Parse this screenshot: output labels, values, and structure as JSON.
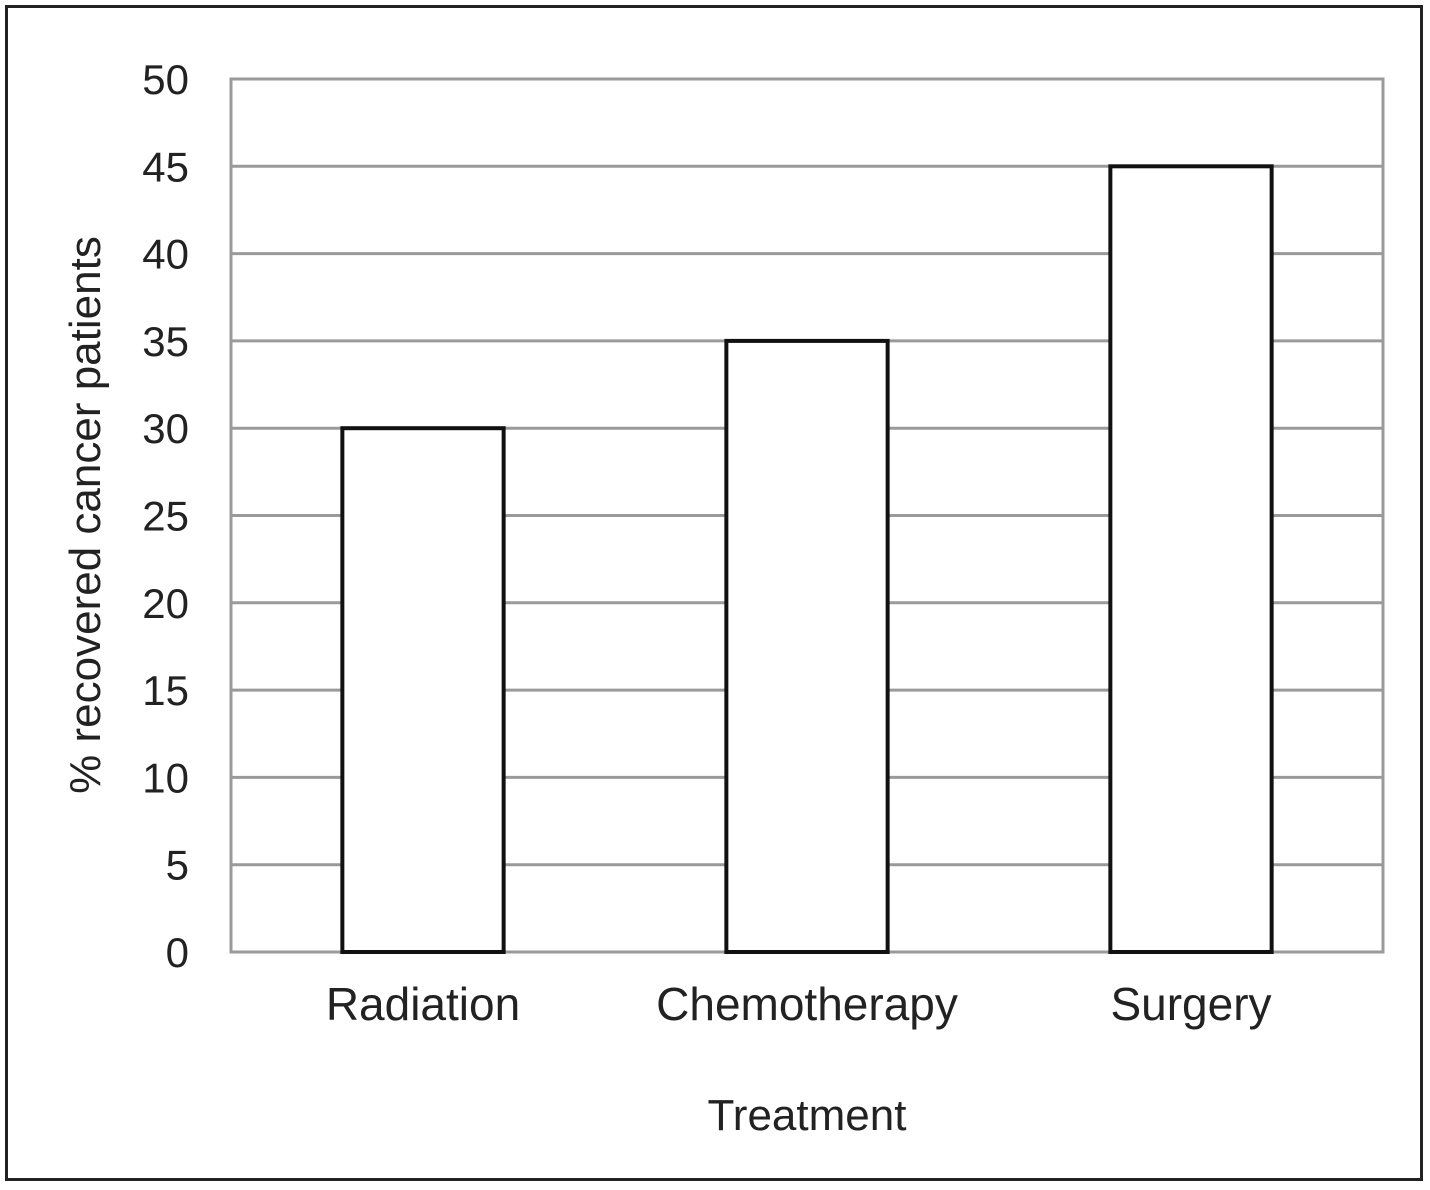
{
  "chart_data": {
    "type": "bar",
    "categories": [
      "Radiation",
      "Chemotherapy",
      "Surgery"
    ],
    "values": [
      30,
      35,
      45
    ],
    "xlabel": "Treatment",
    "ylabel": "% recovered cancer patients",
    "ylim": [
      0,
      50
    ],
    "yticks": [
      0,
      5,
      10,
      15,
      20,
      25,
      30,
      35,
      40,
      45,
      50
    ],
    "grid": true,
    "legend": "none",
    "colors": {
      "bar_fill": "#ffffff",
      "bar_stroke": "#111111",
      "grid": "#9a9a9a",
      "text": "#222222"
    }
  }
}
